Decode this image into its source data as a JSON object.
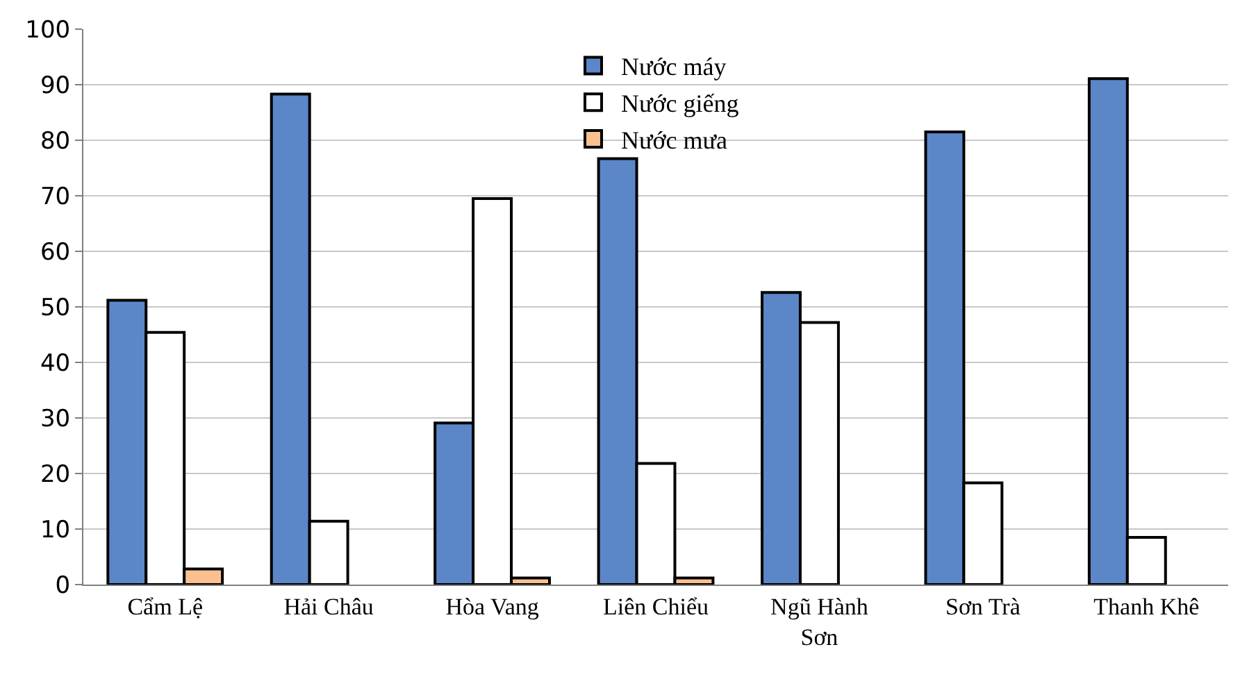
{
  "chart_data": {
    "type": "bar",
    "categories": [
      "Cẩm Lệ",
      "Hải Châu",
      "Hòa Vang",
      "Liên Chiểu",
      "Ngũ Hành Sơn",
      "Sơn Trà",
      "Thanh Khê"
    ],
    "series": [
      {
        "name": "Nước máy",
        "color": "#5b87c8",
        "values": [
          51.2,
          88.3,
          29.1,
          76.7,
          52.6,
          81.5,
          91.1
        ]
      },
      {
        "name": "Nước giếng",
        "color": "#ffffff",
        "values": [
          45.4,
          11.4,
          69.5,
          21.8,
          47.2,
          18.3,
          8.5
        ]
      },
      {
        "name": "Nước mưa",
        "color": "#fac090",
        "values": [
          2.8,
          null,
          1.2,
          1.2,
          null,
          null,
          null
        ]
      }
    ],
    "ylim": [
      0,
      100
    ],
    "yticks": [
      0,
      10,
      20,
      30,
      40,
      50,
      60,
      70,
      80,
      90,
      100
    ],
    "grid": "y",
    "legend": "top"
  }
}
